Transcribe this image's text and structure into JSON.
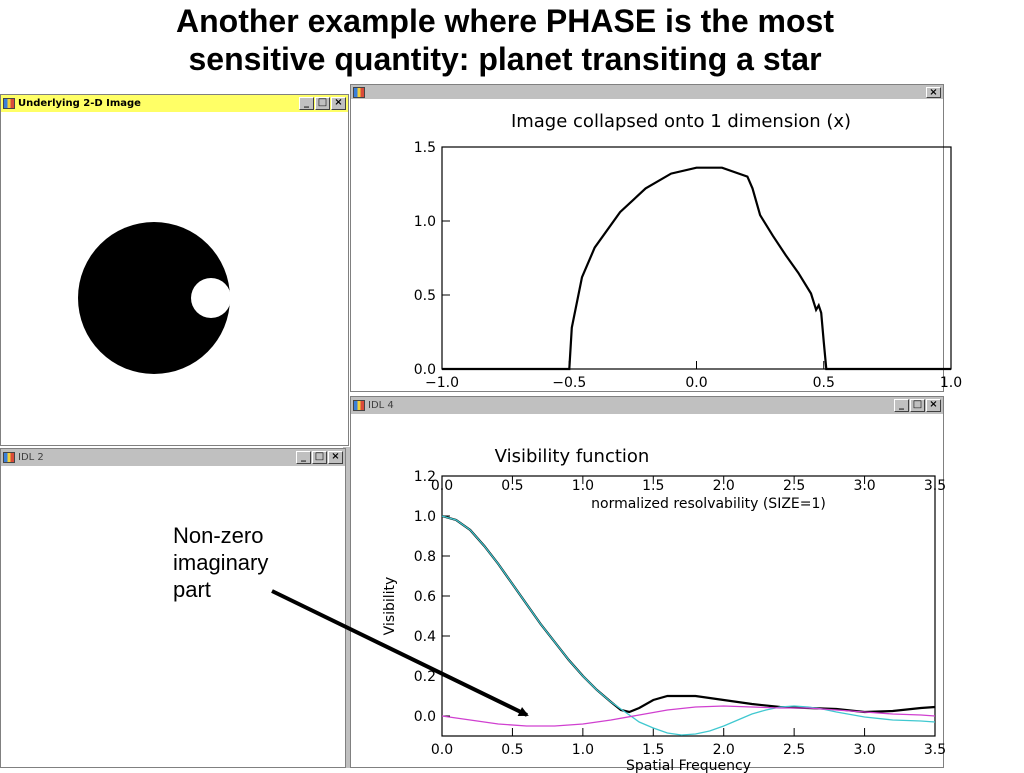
{
  "slide": {
    "title_line1": "Another example where PHASE is the most",
    "title_line2": "sensitive quantity: planet transiting a star"
  },
  "windows": {
    "image2d": {
      "title": "Underlying 2-D Image",
      "state": "active"
    },
    "idl2": {
      "title": "IDL 2",
      "state": "inactive"
    },
    "idl4": {
      "title": "IDL 4",
      "state": "inactive"
    },
    "buttons": {
      "minimize": "_",
      "maximize": "□",
      "close": "×"
    }
  },
  "annotation": {
    "line1": "Non-zero",
    "line2": "imaginary",
    "line3": "part"
  },
  "chart_data": [
    {
      "type": "line",
      "title": "Image collapsed onto 1 dimension (x)",
      "xlim": [
        -1.0,
        1.0
      ],
      "ylim": [
        0.0,
        1.5
      ],
      "xticks": [
        "−1.0",
        "−0.5",
        "0.0",
        "0.5",
        "1.0"
      ],
      "yticks": [
        "0.0",
        "0.5",
        "1.0",
        "1.5"
      ],
      "series": [
        {
          "color": "#000000",
          "x": [
            -1.0,
            -0.5,
            -0.49,
            -0.45,
            -0.4,
            -0.3,
            -0.2,
            -0.1,
            0.0,
            0.1,
            0.2,
            0.22,
            0.25,
            0.3,
            0.35,
            0.4,
            0.45,
            0.47,
            0.48,
            0.49,
            0.5,
            0.51,
            1.0
          ],
          "y": [
            0.0,
            0.0,
            0.28,
            0.62,
            0.82,
            1.06,
            1.22,
            1.32,
            1.36,
            1.36,
            1.3,
            1.22,
            1.04,
            0.9,
            0.77,
            0.65,
            0.51,
            0.4,
            0.43,
            0.38,
            0.18,
            0.0,
            0.0
          ]
        }
      ]
    },
    {
      "type": "line",
      "title": "Visibility function",
      "xlabel": "Spatial Frequency",
      "ylabel": "Visibility",
      "top_axis_label": "normalized resolvability (SIZE=1)",
      "xlim": [
        0.0,
        3.5
      ],
      "ylim": [
        -0.1,
        1.2
      ],
      "xticks": [
        "0.0",
        "0.5",
        "1.0",
        "1.5",
        "2.0",
        "2.5",
        "3.0",
        "3.5"
      ],
      "yticks": [
        "0.0",
        "0.2",
        "0.4",
        "0.6",
        "0.8",
        "1.0",
        "1.2"
      ],
      "series": [
        {
          "color": "#000000",
          "x": [
            0.0,
            0.1,
            0.2,
            0.3,
            0.4,
            0.5,
            0.6,
            0.7,
            0.8,
            0.9,
            1.0,
            1.1,
            1.2,
            1.27,
            1.33,
            1.4,
            1.5,
            1.6,
            1.7,
            1.8,
            1.9,
            2.0,
            2.1,
            2.2,
            2.4,
            2.6,
            2.8,
            3.0,
            3.2,
            3.4,
            3.5
          ],
          "y": [
            1.0,
            0.98,
            0.93,
            0.85,
            0.76,
            0.66,
            0.56,
            0.46,
            0.37,
            0.28,
            0.2,
            0.13,
            0.07,
            0.03,
            0.02,
            0.04,
            0.08,
            0.1,
            0.1,
            0.1,
            0.09,
            0.08,
            0.07,
            0.06,
            0.045,
            0.04,
            0.035,
            0.02,
            0.025,
            0.04,
            0.045
          ]
        },
        {
          "color": "#40c8d0",
          "x": [
            0.0,
            0.1,
            0.2,
            0.3,
            0.4,
            0.5,
            0.6,
            0.7,
            0.8,
            0.9,
            1.0,
            1.1,
            1.2,
            1.3,
            1.4,
            1.5,
            1.6,
            1.7,
            1.8,
            1.9,
            2.0,
            2.1,
            2.2,
            2.3,
            2.4,
            2.5,
            2.6,
            2.7,
            2.8,
            3.0,
            3.2,
            3.4,
            3.5
          ],
          "y": [
            1.0,
            0.98,
            0.93,
            0.85,
            0.76,
            0.66,
            0.56,
            0.46,
            0.37,
            0.28,
            0.2,
            0.13,
            0.07,
            0.02,
            -0.03,
            -0.06,
            -0.085,
            -0.095,
            -0.09,
            -0.075,
            -0.05,
            -0.02,
            0.01,
            0.03,
            0.045,
            0.05,
            0.045,
            0.035,
            0.02,
            -0.005,
            -0.02,
            -0.025,
            -0.03
          ]
        },
        {
          "color": "#d040d0",
          "x": [
            0.0,
            0.2,
            0.4,
            0.6,
            0.8,
            1.0,
            1.2,
            1.4,
            1.6,
            1.8,
            2.0,
            2.2,
            2.4,
            2.6,
            2.8,
            3.0,
            3.2,
            3.4,
            3.5
          ],
          "y": [
            0.0,
            -0.02,
            -0.04,
            -0.05,
            -0.05,
            -0.04,
            -0.02,
            0.005,
            0.03,
            0.045,
            0.05,
            0.045,
            0.04,
            0.04,
            0.03,
            0.02,
            0.01,
            0.005,
            0.0
          ]
        }
      ]
    }
  ]
}
